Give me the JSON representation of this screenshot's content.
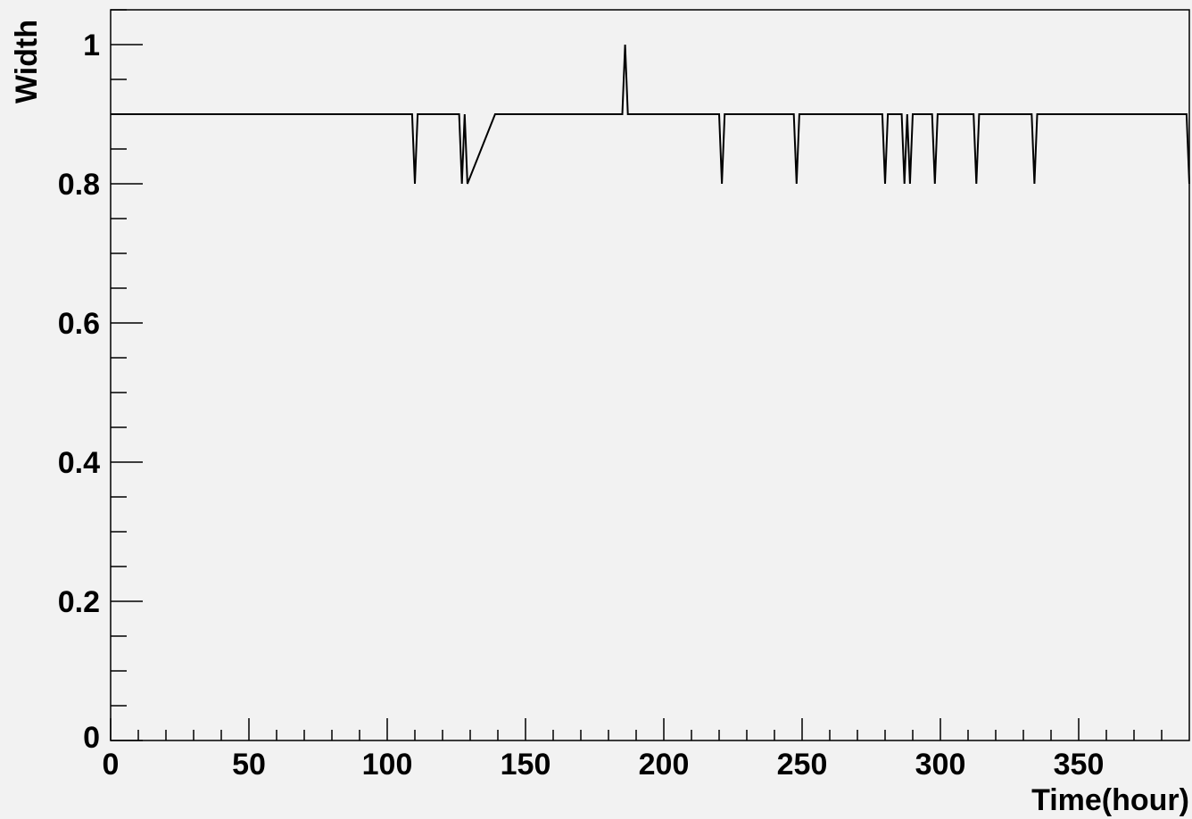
{
  "chart_data": {
    "type": "line",
    "xlabel": "Time(hour)",
    "ylabel": "Width",
    "xlim": [
      0,
      390
    ],
    "ylim": [
      0,
      1.05
    ],
    "x_ticks": [
      0,
      50,
      100,
      150,
      200,
      250,
      300,
      350
    ],
    "x_tick_labels": [
      "0",
      "50",
      "100",
      "150",
      "200",
      "250",
      "300",
      "350"
    ],
    "y_ticks": [
      0,
      0.2,
      0.4,
      0.6,
      0.8,
      1
    ],
    "y_tick_labels": [
      "0",
      "0.2",
      "0.4",
      "0.6",
      "0.8",
      "1"
    ],
    "grid": false,
    "line_color": "#000000",
    "background_color": "#f2f2f2",
    "series": [
      {
        "x": [
          0,
          109,
          110,
          111,
          126,
          127,
          128,
          129,
          139,
          140,
          185,
          186,
          187,
          220,
          221,
          222,
          247,
          248,
          249,
          279,
          280,
          281,
          286,
          287,
          288,
          289,
          290,
          297,
          298,
          299,
          312,
          313,
          314,
          333,
          334,
          335,
          389,
          390
        ],
        "y": [
          0.9,
          0.9,
          0.8,
          0.9,
          0.9,
          0.8,
          0.9,
          0.8,
          0.9,
          0.9,
          0.9,
          1.0,
          0.9,
          0.9,
          0.8,
          0.9,
          0.9,
          0.8,
          0.9,
          0.9,
          0.8,
          0.9,
          0.9,
          0.8,
          0.9,
          0.8,
          0.9,
          0.9,
          0.8,
          0.9,
          0.9,
          0.8,
          0.9,
          0.9,
          0.8,
          0.9,
          0.9,
          0.8
        ]
      }
    ]
  }
}
